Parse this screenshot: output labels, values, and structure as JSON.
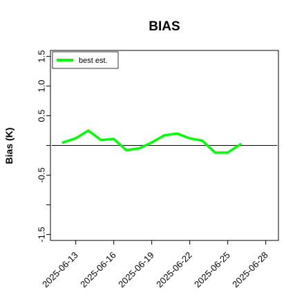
{
  "chart_data": {
    "type": "line",
    "title": "BIAS",
    "xlabel": "",
    "ylabel": "Bias (K)",
    "x": [
      "2025-06-12",
      "2025-06-13",
      "2025-06-14",
      "2025-06-15",
      "2025-06-16",
      "2025-06-17",
      "2025-06-18",
      "2025-06-19",
      "2025-06-20",
      "2025-06-21",
      "2025-06-22",
      "2025-06-23",
      "2025-06-24",
      "2025-06-25",
      "2025-06-26"
    ],
    "x_ticks": [
      "2025-06-13",
      "2025-06-16",
      "2025-06-19",
      "2025-06-22",
      "2025-06-25",
      "2025-06-28"
    ],
    "y_ticks": [
      "-1.5",
      "-1.0",
      "-0.5",
      "0.0",
      "0.5",
      "1.0",
      "1.5"
    ],
    "y_tick_labels": [
      "-1.5",
      "",
      "-0.5",
      "",
      "0.5",
      "1.0",
      "1.5"
    ],
    "ylim": [
      -1.6,
      1.6
    ],
    "xlim": [
      "2025-06-11",
      "2025-06-29"
    ],
    "legend_position": "top-left",
    "grid": false,
    "reference_line": 0,
    "series": [
      {
        "name": "best est.",
        "color": "#00ff00",
        "values": [
          0.05,
          0.12,
          0.25,
          0.09,
          0.11,
          -0.08,
          -0.05,
          0.05,
          0.17,
          0.2,
          0.12,
          0.08,
          -0.12,
          -0.12,
          0.02
        ]
      }
    ]
  }
}
